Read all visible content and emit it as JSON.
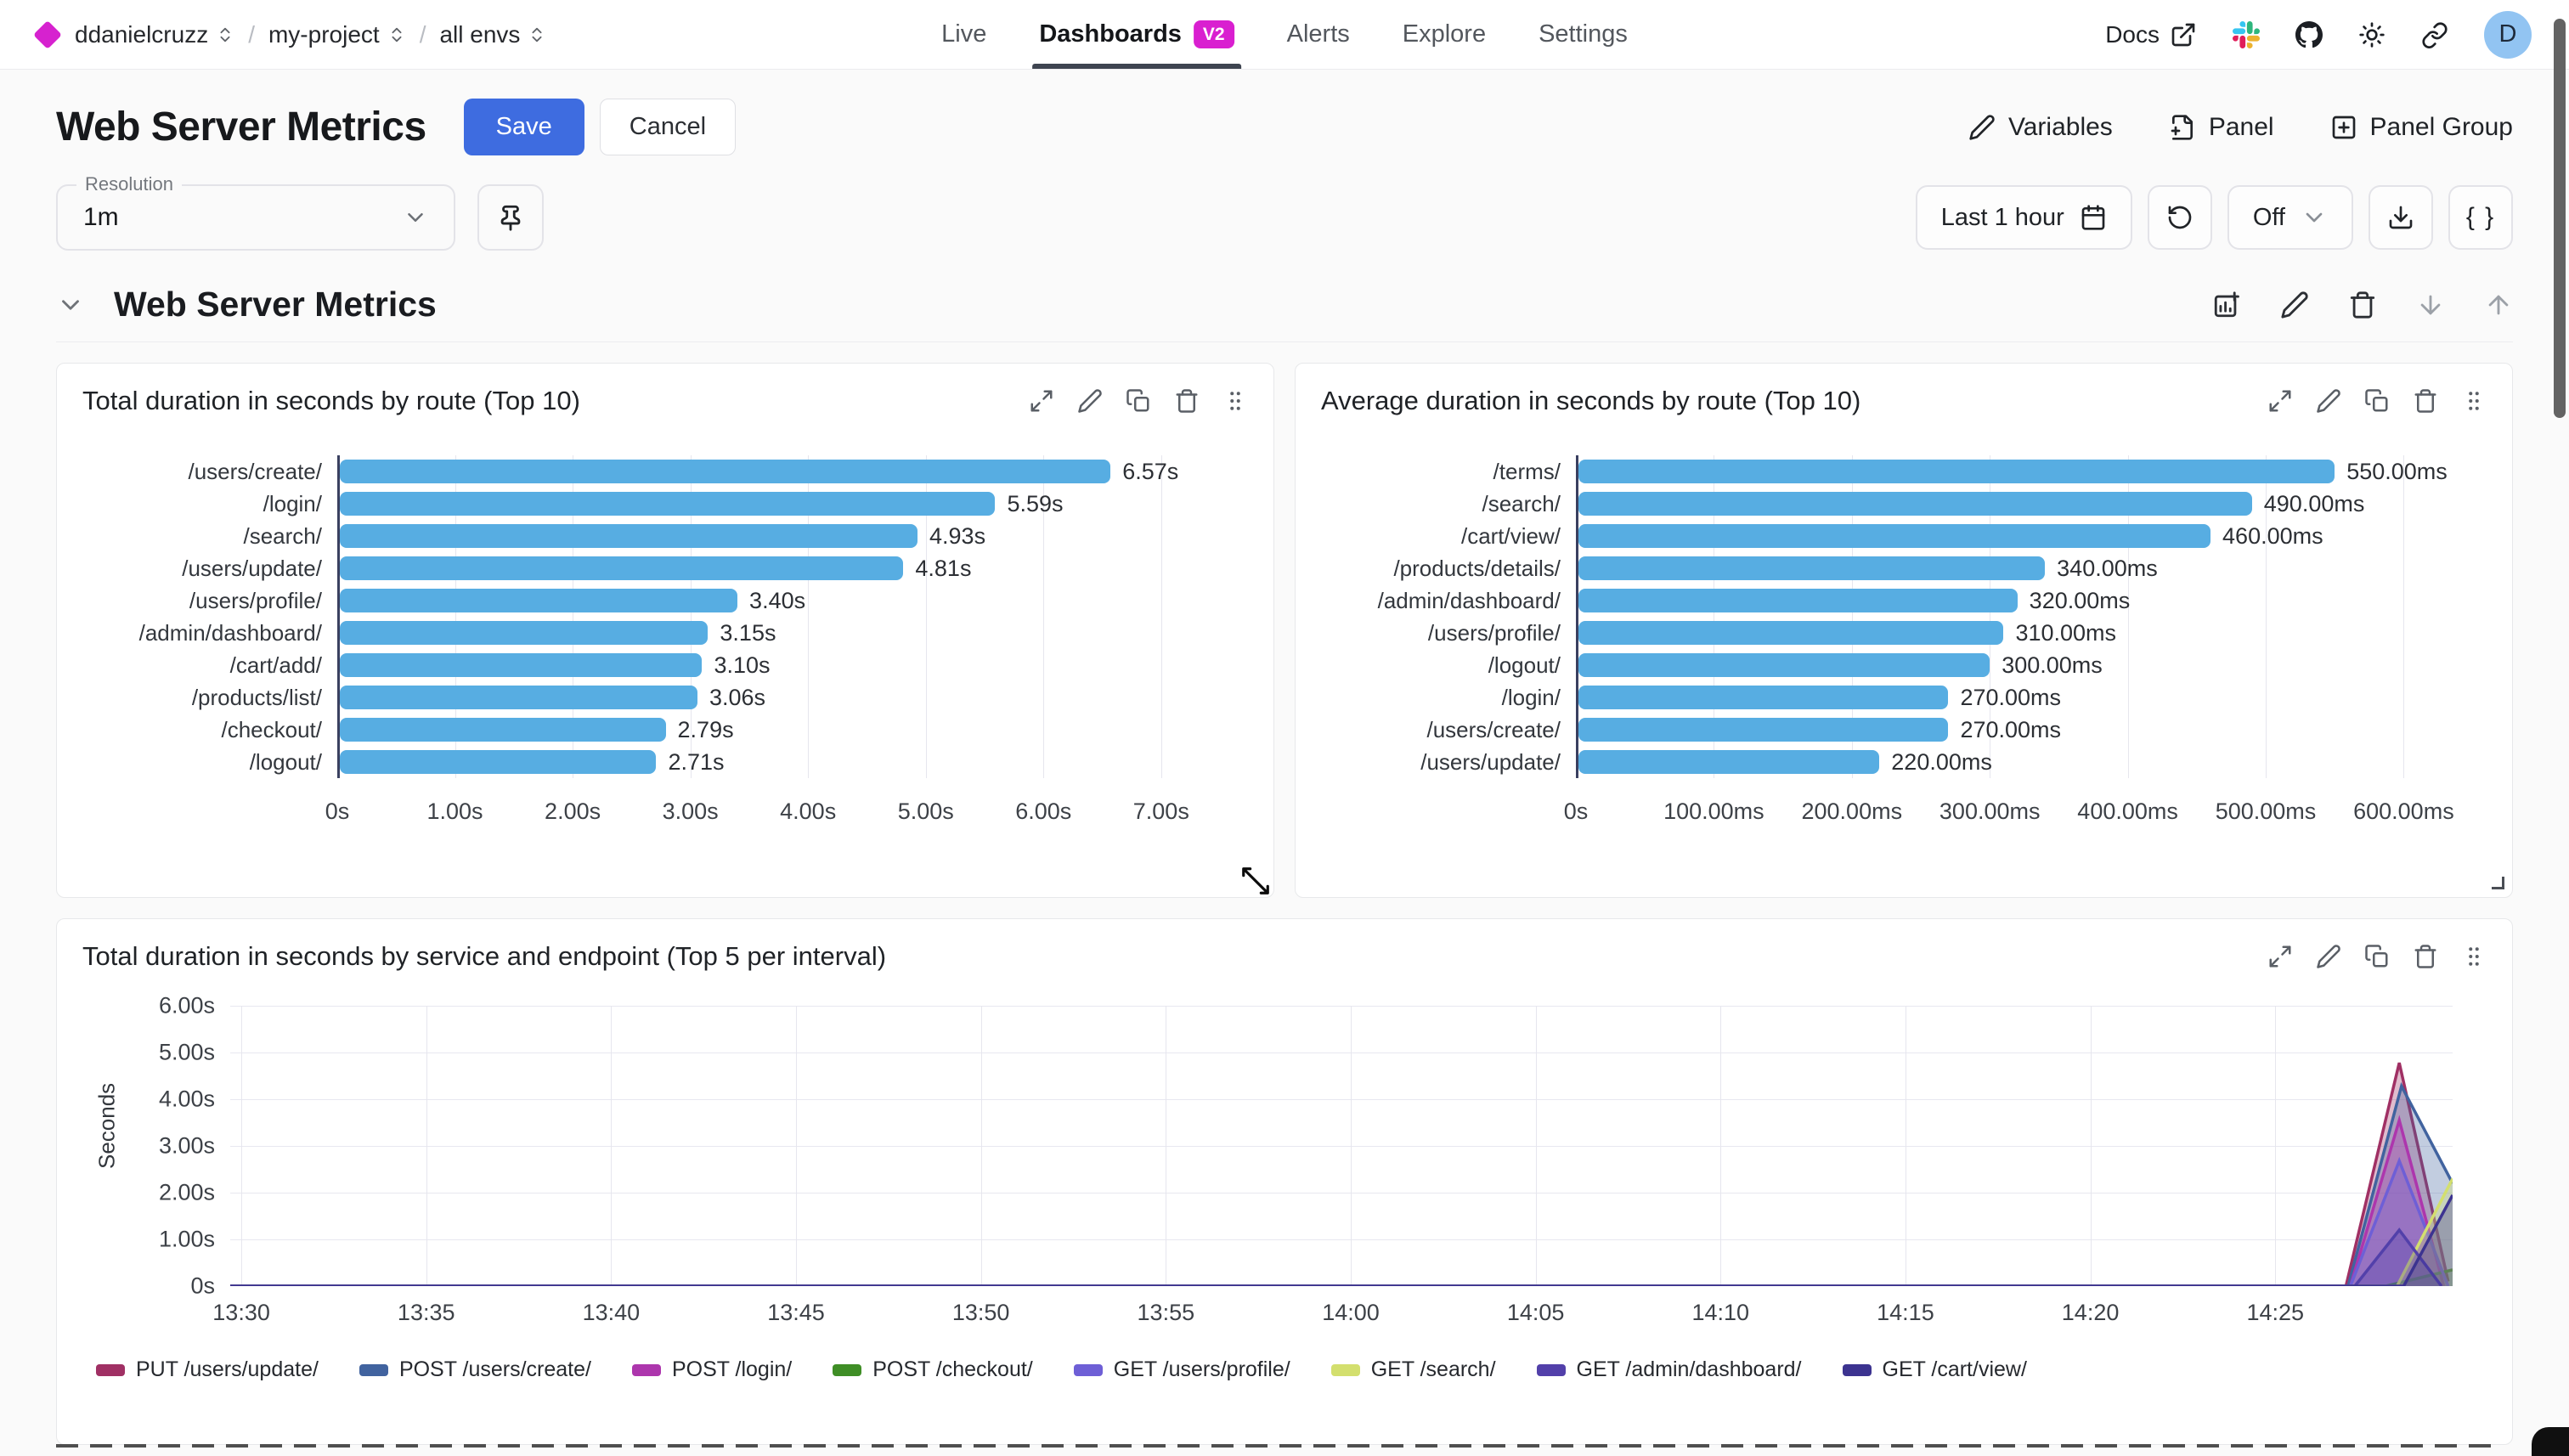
{
  "nav": {
    "breadcrumbs": [
      {
        "label": "ddanielcruzz"
      },
      {
        "label": "my-project"
      },
      {
        "label": "all envs"
      }
    ],
    "tabs": [
      {
        "label": "Live",
        "active": false
      },
      {
        "label": "Dashboards",
        "active": true,
        "badge": "V2"
      },
      {
        "label": "Alerts",
        "active": false
      },
      {
        "label": "Explore",
        "active": false
      },
      {
        "label": "Settings",
        "active": false
      }
    ],
    "docs_label": "Docs",
    "avatar_initial": "D"
  },
  "header": {
    "title": "Web Server Metrics",
    "save_label": "Save",
    "cancel_label": "Cancel",
    "variables_label": "Variables",
    "panel_label": "Panel",
    "panel_group_label": "Panel Group"
  },
  "toolbar": {
    "resolution_label": "Resolution",
    "resolution_value": "1m",
    "time_range": "Last 1 hour",
    "refresh_off": "Off",
    "code_button": "{ }"
  },
  "section": {
    "title": "Web Server Metrics"
  },
  "icons": {
    "panel_actions": [
      "expand",
      "pencil",
      "copy",
      "trash",
      "drag"
    ],
    "section_actions": [
      "chart-plus",
      "pencil",
      "trash",
      "arrow-down",
      "arrow-up"
    ]
  },
  "colors": {
    "accent_blue": "#3e6ce0",
    "bar_blue": "#57ade2",
    "badge_magenta": "#d91fd0",
    "logo_magenta": "#d622cf"
  },
  "chart_data": [
    {
      "type": "bar",
      "orientation": "horizontal",
      "title": "Total duration in seconds by route (Top 10)",
      "categories": [
        "/users/create/",
        "/login/",
        "/search/",
        "/users/update/",
        "/users/profile/",
        "/admin/dashboard/",
        "/cart/add/",
        "/products/list/",
        "/checkout/",
        "/logout/"
      ],
      "values": [
        6.57,
        5.59,
        4.93,
        4.81,
        3.4,
        3.15,
        3.1,
        3.06,
        2.79,
        2.71
      ],
      "value_labels": [
        "6.57s",
        "5.59s",
        "4.93s",
        "4.81s",
        "3.40s",
        "3.15s",
        "3.10s",
        "3.06s",
        "2.79s",
        "2.71s"
      ],
      "tick_labels": [
        "0s",
        "1.00s",
        "2.00s",
        "3.00s",
        "4.00s",
        "5.00s",
        "6.00s",
        "7.00s"
      ],
      "tick_values": [
        0,
        1,
        2,
        3,
        4,
        5,
        6,
        7
      ],
      "xlim": [
        0,
        7.42
      ],
      "bar_color": "#57ade2"
    },
    {
      "type": "bar",
      "orientation": "horizontal",
      "title": "Average duration in seconds by route (Top 10)",
      "categories": [
        "/terms/",
        "/search/",
        "/cart/view/",
        "/products/details/",
        "/admin/dashboard/",
        "/users/profile/",
        "/logout/",
        "/login/",
        "/users/create/",
        "/users/update/"
      ],
      "values": [
        550,
        490,
        460,
        340,
        320,
        310,
        300,
        270,
        270,
        220
      ],
      "value_labels": [
        "550.00ms",
        "490.00ms",
        "460.00ms",
        "340.00ms",
        "320.00ms",
        "310.00ms",
        "300.00ms",
        "270.00ms",
        "270.00ms",
        "220.00ms"
      ],
      "tick_labels": [
        "0s",
        "100.00ms",
        "200.00ms",
        "300.00ms",
        "400.00ms",
        "500.00ms",
        "600.00ms"
      ],
      "tick_values": [
        0,
        100,
        200,
        300,
        400,
        500,
        600
      ],
      "xlim": [
        0,
        633
      ],
      "bar_color": "#57ade2"
    },
    {
      "type": "area",
      "title": "Total duration in seconds by service and endpoint (Top 5 per interval)",
      "ylabel": "Seconds",
      "y_tick_labels": [
        "0s",
        "1.00s",
        "2.00s",
        "3.00s",
        "4.00s",
        "5.00s",
        "6.00s"
      ],
      "y_tick_values": [
        0,
        1,
        2,
        3,
        4,
        5,
        6
      ],
      "ylim": [
        0,
        6
      ],
      "x_ticks": [
        {
          "label": "13:30",
          "f": 0.005
        },
        {
          "label": "13:35",
          "f": 0.0882
        },
        {
          "label": "13:40",
          "f": 0.1714
        },
        {
          "label": "13:45",
          "f": 0.2546
        },
        {
          "label": "13:50",
          "f": 0.3378
        },
        {
          "label": "13:55",
          "f": 0.421
        },
        {
          "label": "14:00",
          "f": 0.5042
        },
        {
          "label": "14:05",
          "f": 0.5874
        },
        {
          "label": "14:10",
          "f": 0.6706
        },
        {
          "label": "14:15",
          "f": 0.7538
        },
        {
          "label": "14:20",
          "f": 0.837
        },
        {
          "label": "14:25",
          "f": 0.9202
        }
      ],
      "series": [
        {
          "name": "PUT /users/update/",
          "color": "#a03064",
          "points": [
            [
              0,
              0
            ],
            [
              0.952,
              0
            ],
            [
              0.976,
              4.78
            ],
            [
              0.998,
              0.1
            ]
          ]
        },
        {
          "name": "POST /users/create/",
          "color": "#41639f",
          "points": [
            [
              0,
              0
            ],
            [
              0.953,
              0
            ],
            [
              0.977,
              4.28
            ],
            [
              1,
              2.2
            ]
          ]
        },
        {
          "name": "POST /login/",
          "color": "#ad36ad",
          "points": [
            [
              0,
              0
            ],
            [
              0.954,
              0
            ],
            [
              0.976,
              3.55
            ],
            [
              0.996,
              0
            ]
          ]
        },
        {
          "name": "POST /checkout/",
          "color": "#3f8e26",
          "points": [
            [
              0,
              0
            ],
            [
              0.97,
              0
            ],
            [
              1,
              0.35
            ]
          ]
        },
        {
          "name": "GET /users/profile/",
          "color": "#6e5fd6",
          "points": [
            [
              0,
              0
            ],
            [
              0.954,
              0
            ],
            [
              0.976,
              2.68
            ],
            [
              0.998,
              0
            ]
          ]
        },
        {
          "name": "GET /search/",
          "color": "#d3df6e",
          "points": [
            [
              0,
              0
            ],
            [
              0.975,
              0
            ],
            [
              1,
              2.3
            ]
          ]
        },
        {
          "name": "GET /admin/dashboard/",
          "color": "#5240aa",
          "points": [
            [
              0,
              0
            ],
            [
              0.956,
              0
            ],
            [
              0.976,
              1.2
            ],
            [
              0.995,
              0
            ]
          ]
        },
        {
          "name": "GET /cart/view/",
          "color": "#3c3390",
          "points": [
            [
              0,
              0
            ],
            [
              0.978,
              0
            ],
            [
              1,
              1.95
            ]
          ]
        }
      ]
    }
  ]
}
